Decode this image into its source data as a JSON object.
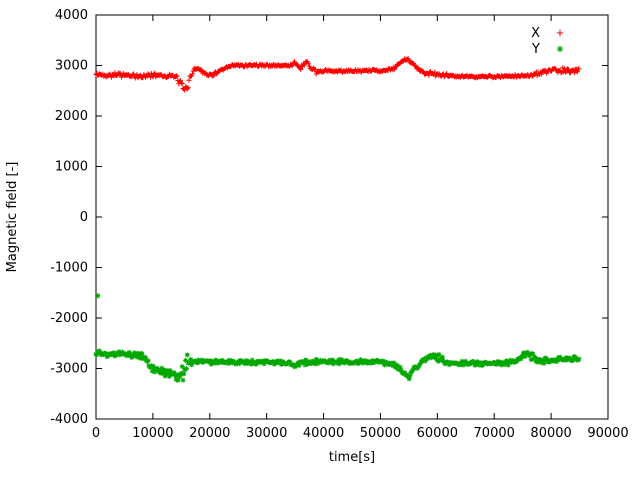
{
  "chart_data": {
    "type": "scatter",
    "title": "",
    "xlabel": "time[s]",
    "ylabel": "Magnetic field [-]",
    "xlim": [
      0,
      90000
    ],
    "ylim": [
      -4000,
      4000
    ],
    "x_ticks": [
      0,
      10000,
      20000,
      30000,
      40000,
      50000,
      60000,
      70000,
      80000,
      90000
    ],
    "y_ticks": [
      -4000,
      -3000,
      -2000,
      -1000,
      0,
      1000,
      2000,
      3000,
      4000
    ],
    "grid": false,
    "legend_position": "top-right-inside",
    "sample_step": 150,
    "series": [
      {
        "name": "X",
        "color": "#ff0000",
        "marker": "plus",
        "x": [
          0,
          2000,
          4000,
          6000,
          8000,
          10000,
          12000,
          14000,
          15000,
          15500,
          16000,
          17000,
          18000,
          19000,
          20000,
          22000,
          24000,
          26000,
          28000,
          30000,
          32000,
          34000,
          35000,
          36000,
          37000,
          38000,
          39000,
          40000,
          42000,
          44000,
          46000,
          48000,
          50000,
          52000,
          53000,
          54000,
          55000,
          56000,
          57000,
          58000,
          60000,
          62000,
          64000,
          66000,
          68000,
          70000,
          72000,
          74000,
          76000,
          78000,
          80000,
          82000,
          84000,
          85000
        ],
        "y": [
          2820,
          2810,
          2830,
          2790,
          2780,
          2820,
          2800,
          2780,
          2620,
          2500,
          2560,
          2900,
          2950,
          2860,
          2800,
          2900,
          3000,
          3000,
          3010,
          3000,
          3000,
          3000,
          3050,
          2950,
          3080,
          2900,
          2860,
          2900,
          2880,
          2900,
          2880,
          2900,
          2900,
          2920,
          3000,
          3100,
          3120,
          3000,
          2900,
          2850,
          2820,
          2800,
          2780,
          2780,
          2780,
          2780,
          2780,
          2790,
          2800,
          2850,
          2900,
          2900,
          2880,
          2950
        ],
        "spread": [
          50,
          50,
          60,
          50,
          60,
          60,
          50,
          60,
          80,
          90,
          80,
          60,
          40,
          40,
          40,
          40,
          30,
          30,
          30,
          30,
          40,
          40,
          50,
          60,
          50,
          60,
          50,
          40,
          40,
          40,
          40,
          40,
          40,
          40,
          40,
          40,
          40,
          40,
          50,
          50,
          50,
          40,
          30,
          30,
          30,
          30,
          30,
          30,
          40,
          50,
          50,
          60,
          60,
          50
        ],
        "outliers": []
      },
      {
        "name": "Y",
        "color": "#00a800",
        "marker": "star",
        "x": [
          0,
          2000,
          4000,
          6000,
          8000,
          9000,
          10000,
          11000,
          12000,
          13000,
          14000,
          15000,
          15800,
          16500,
          17000,
          18000,
          20000,
          22000,
          24000,
          26000,
          28000,
          30000,
          32000,
          34000,
          35000,
          36000,
          38000,
          40000,
          42000,
          44000,
          46000,
          48000,
          50000,
          52000,
          53000,
          54000,
          55000,
          56000,
          57000,
          58000,
          59000,
          60000,
          61000,
          62000,
          64000,
          66000,
          68000,
          70000,
          72000,
          74000,
          75000,
          76000,
          77000,
          78000,
          80000,
          82000,
          84000,
          85000
        ],
        "y": [
          -2700,
          -2720,
          -2700,
          -2730,
          -2750,
          -2850,
          -3000,
          -3050,
          -3080,
          -3100,
          -3150,
          -3120,
          -2900,
          -2850,
          -2880,
          -2850,
          -2870,
          -2860,
          -2880,
          -2870,
          -2880,
          -2870,
          -2880,
          -2900,
          -2950,
          -2880,
          -2870,
          -2860,
          -2870,
          -2860,
          -2870,
          -2860,
          -2870,
          -2900,
          -2950,
          -3100,
          -3150,
          -3000,
          -2900,
          -2800,
          -2750,
          -2780,
          -2850,
          -2900,
          -2900,
          -2900,
          -2900,
          -2900,
          -2890,
          -2850,
          -2750,
          -2700,
          -2800,
          -2850,
          -2850,
          -2820,
          -2800,
          -2820
        ],
        "spread": [
          60,
          60,
          60,
          60,
          60,
          70,
          80,
          80,
          90,
          90,
          100,
          150,
          300,
          100,
          60,
          50,
          50,
          50,
          50,
          50,
          50,
          50,
          50,
          60,
          70,
          60,
          60,
          50,
          50,
          50,
          50,
          50,
          50,
          60,
          70,
          80,
          80,
          70,
          70,
          80,
          90,
          100,
          80,
          60,
          50,
          50,
          50,
          50,
          50,
          60,
          80,
          90,
          70,
          60,
          70,
          60,
          60,
          60
        ],
        "outliers": [
          {
            "x": 300,
            "y": -1560
          }
        ]
      }
    ]
  }
}
